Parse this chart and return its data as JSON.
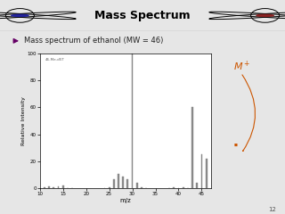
{
  "title": "Mass Spectrum",
  "subtitle": "Mass spectrum of ethanol (MW = 46)",
  "xlabel": "m/z",
  "ylabel": "Relative Intensity",
  "xlim": [
    10,
    47
  ],
  "ylim": [
    0,
    100
  ],
  "yticks": [
    0,
    20,
    40,
    60,
    80,
    100
  ],
  "xticks": [
    10,
    15,
    20,
    25,
    30,
    35,
    40,
    45
  ],
  "slide_bg": "#e6e6e6",
  "header_bg": "#d4d4d4",
  "plot_bg": "#ffffff",
  "bar_color": "#888888",
  "M_plus_color": "#cc5500",
  "annotation_text": "46-Me-d5T",
  "header_border_color": "#aaaaaa",
  "green_line_color": "#88aa00",
  "peaks": [
    [
      11,
      0.8
    ],
    [
      12,
      1.2
    ],
    [
      13,
      0.8
    ],
    [
      14,
      1.5
    ],
    [
      15,
      1.8
    ],
    [
      16,
      0.4
    ],
    [
      17,
      0.4
    ],
    [
      24,
      0.3
    ],
    [
      25,
      0.8
    ],
    [
      26,
      7
    ],
    [
      27,
      11
    ],
    [
      28,
      9
    ],
    [
      29,
      7
    ],
    [
      30,
      100
    ],
    [
      31,
      4
    ],
    [
      32,
      0.8
    ],
    [
      33,
      0.4
    ],
    [
      38,
      0.3
    ],
    [
      39,
      0.8
    ],
    [
      40,
      0.4
    ],
    [
      41,
      0.8
    ],
    [
      42,
      0.4
    ],
    [
      43,
      60
    ],
    [
      44,
      4
    ],
    [
      45,
      25
    ],
    [
      46,
      22
    ]
  ],
  "page_num": "12"
}
